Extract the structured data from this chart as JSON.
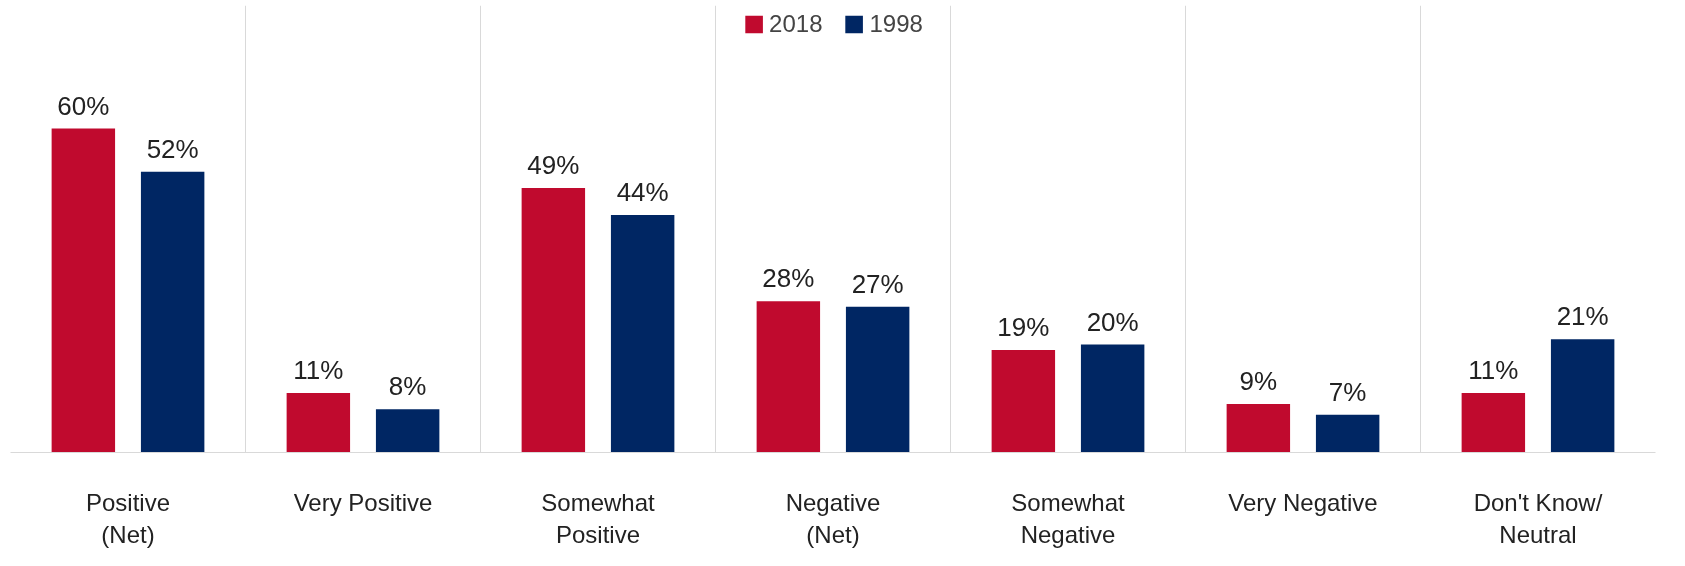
{
  "chart_data": {
    "type": "bar",
    "categories": [
      "Positive (Net)",
      "Very Positive",
      "Somewhat Positive",
      "Negative (Net)",
      "Somewhat Negative",
      "Very Negative",
      "Don't Know/ Neutral"
    ],
    "series": [
      {
        "name": "2018",
        "color": "#c00a2e",
        "values": [
          60,
          11,
          49,
          28,
          19,
          9,
          11
        ],
        "value_labels": [
          "60%",
          "11%",
          "49%",
          "28%",
          "19%",
          "9%",
          "11%"
        ]
      },
      {
        "name": "1998",
        "color": "#002663",
        "values": [
          52,
          8,
          44,
          27,
          20,
          7,
          21
        ],
        "value_labels": [
          "52%",
          "8%",
          "44%",
          "27%",
          "20%",
          "7%",
          "21%"
        ]
      }
    ],
    "grid": "x",
    "legend": "top"
  }
}
